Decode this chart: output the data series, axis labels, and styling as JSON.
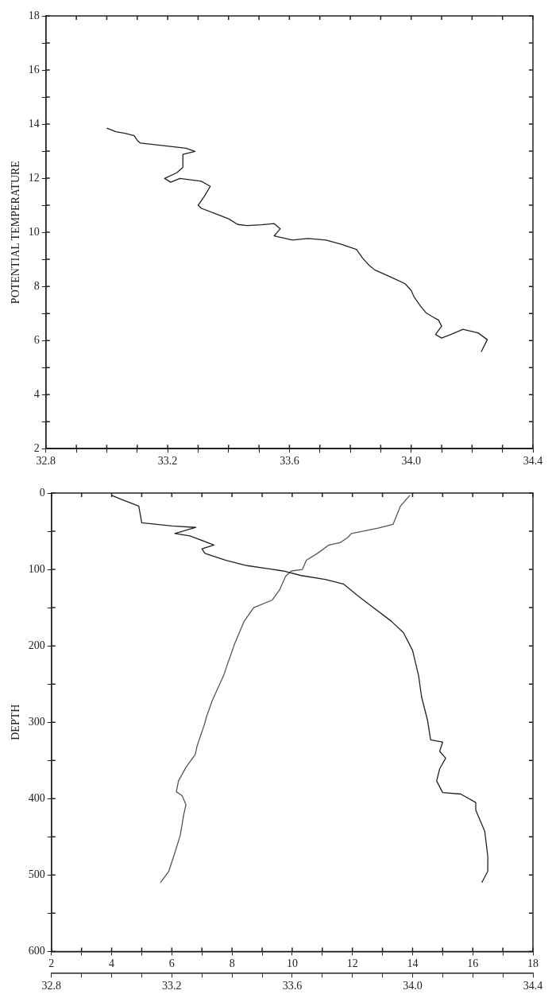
{
  "chart_data": [
    {
      "type": "line",
      "ylabel": "POTENTIAL TEMPERATURE",
      "marker": "none",
      "xlim": [
        32.8,
        34.4
      ],
      "xticks": [
        32.8,
        {
          "value": 32.9,
          "label": null
        },
        {
          "value": 33,
          "label": null
        },
        {
          "value": 33.1,
          "label": null
        },
        33.2,
        {
          "value": 33.3,
          "label": null
        },
        {
          "value": 33.4,
          "label": null
        },
        {
          "value": 33.5,
          "label": null
        },
        33.6,
        {
          "value": 33.7,
          "label": null
        },
        {
          "value": 33.8,
          "label": null
        },
        {
          "value": 33.9,
          "label": null
        },
        {
          "value": 34,
          "label": "34.0"
        },
        {
          "value": 34.1,
          "label": null
        },
        {
          "value": 34.2,
          "label": null
        },
        {
          "value": 34.3,
          "label": null
        },
        34.4
      ],
      "ylim": [
        2,
        18
      ],
      "yticks": [
        2,
        {
          "value": 3,
          "label": null
        },
        4,
        {
          "value": 5,
          "label": null
        },
        6,
        {
          "value": 7,
          "label": null
        },
        8,
        {
          "value": 9,
          "label": null
        },
        10,
        {
          "value": 11,
          "label": null
        },
        12,
        {
          "value": 13,
          "label": null
        },
        14,
        {
          "value": 15,
          "label": null
        },
        16,
        {
          "value": 17,
          "label": null
        },
        18
      ],
      "series": [
        {
          "color": "#222222",
          "x": [
            33.0,
            33.03,
            33.06,
            33.09,
            33.1,
            33.11,
            33.18,
            33.26,
            33.29,
            33.25,
            33.25,
            33.23,
            33.19,
            33.21,
            33.24,
            33.27,
            33.31,
            33.34,
            33.32,
            33.3,
            33.31,
            33.37,
            33.4,
            33.43,
            33.46,
            33.51,
            33.55,
            33.57,
            33.56,
            33.55,
            33.61,
            33.66,
            33.72,
            33.77,
            33.82,
            33.84,
            33.86,
            33.88,
            33.93,
            33.98,
            34.0,
            34.01,
            34.03,
            34.05,
            34.07,
            34.09,
            34.1,
            34.08,
            34.1,
            34.13,
            34.17,
            34.22,
            34.25,
            34.23
          ],
          "values": [
            13.85,
            13.72,
            13.66,
            13.57,
            13.4,
            13.3,
            13.21,
            13.11,
            12.99,
            12.88,
            12.4,
            12.2,
            11.99,
            11.85,
            11.99,
            11.95,
            11.89,
            11.7,
            11.32,
            11.0,
            10.89,
            10.63,
            10.5,
            10.29,
            10.25,
            10.28,
            10.32,
            10.13,
            10.0,
            9.87,
            9.71,
            9.77,
            9.71,
            9.56,
            9.37,
            9.05,
            8.8,
            8.61,
            8.36,
            8.1,
            7.85,
            7.6,
            7.28,
            7.01,
            6.88,
            6.75,
            6.53,
            6.22,
            6.09,
            6.22,
            6.41,
            6.28,
            6.03,
            5.58
          ]
        }
      ]
    },
    {
      "type": "line",
      "ylabel": "DEPTH",
      "marker": "none",
      "xlim": [
        2,
        18
      ],
      "xticks": [
        2,
        {
          "value": 3,
          "label": null
        },
        4,
        {
          "value": 5,
          "label": null
        },
        6,
        {
          "value": 7,
          "label": null
        },
        8,
        {
          "value": 9,
          "label": null
        },
        10,
        {
          "value": 11,
          "label": null
        },
        12,
        {
          "value": 13,
          "label": null
        },
        14,
        {
          "value": 15,
          "label": null
        },
        16,
        {
          "value": 17,
          "label": null
        },
        18
      ],
      "x2lim": [
        32.8,
        34.4
      ],
      "x2ticks": [
        32.8,
        {
          "value": 32.9,
          "label": null
        },
        {
          "value": 33,
          "label": null
        },
        {
          "value": 33.1,
          "label": null
        },
        33.2,
        {
          "value": 33.3,
          "label": null
        },
        {
          "value": 33.4,
          "label": null
        },
        {
          "value": 33.5,
          "label": null
        },
        33.6,
        {
          "value": 33.7,
          "label": null
        },
        {
          "value": 33.8,
          "label": null
        },
        {
          "value": 33.9,
          "label": null
        },
        {
          "value": 34,
          "label": "34.0"
        },
        {
          "value": 34.1,
          "label": null
        },
        {
          "value": 34.2,
          "label": null
        },
        {
          "value": 34.3,
          "label": null
        },
        34.4
      ],
      "ylim": [
        600,
        0
      ],
      "yticks": [
        0,
        {
          "value": 50,
          "label": null
        },
        100,
        {
          "value": 150,
          "label": null
        },
        200,
        {
          "value": 250,
          "label": null
        },
        300,
        {
          "value": 350,
          "label": null
        },
        400,
        {
          "value": 450,
          "label": null
        },
        500,
        {
          "value": 550,
          "label": null
        },
        600
      ],
      "series": [
        {
          "color": "#222222",
          "axis": "x2",
          "x": [
            33.0,
            33.03,
            33.09,
            33.1,
            33.2,
            33.28,
            33.21,
            33.26,
            33.34,
            33.3,
            33.31,
            33.38,
            33.45,
            33.52,
            33.57,
            33.63,
            33.71,
            33.77,
            33.82,
            33.86,
            33.93,
            33.97,
            34.0,
            34.02,
            34.03,
            34.05,
            34.06,
            34.1,
            34.09,
            34.11,
            34.09,
            34.08,
            34.1,
            34.16,
            34.21,
            34.21,
            34.24,
            34.25,
            34.25,
            34.23
          ],
          "values": [
            3,
            8,
            17,
            39,
            43,
            45,
            53,
            56,
            68,
            73,
            79,
            88,
            95,
            99,
            102,
            108,
            113,
            119,
            135,
            147,
            168,
            183,
            206,
            239,
            267,
            298,
            323,
            326,
            338,
            347,
            361,
            377,
            392,
            394,
            405,
            415,
            443,
            476,
            495,
            510
          ]
        },
        {
          "color": "#555555",
          "x": [
            13.91,
            13.6,
            13.35,
            12.85,
            11.97,
            11.85,
            11.59,
            11.22,
            10.84,
            10.47,
            10.34,
            9.97,
            9.78,
            9.59,
            9.34,
            8.72,
            8.4,
            8.09,
            7.84,
            7.72,
            7.34,
            7.15,
            7.09,
            6.84,
            6.78,
            6.47,
            6.22,
            6.15,
            6.34,
            6.47,
            6.4,
            6.28,
            6.09,
            5.9,
            5.62
          ],
          "values": [
            3,
            17,
            41,
            46,
            53,
            58,
            65,
            68,
            79,
            88,
            100,
            102,
            109,
            126,
            140,
            150,
            168,
            197,
            225,
            239,
            272,
            293,
            302,
            331,
            342,
            359,
            377,
            391,
            396,
            408,
            420,
            448,
            472,
            495,
            510
          ]
        }
      ]
    }
  ]
}
